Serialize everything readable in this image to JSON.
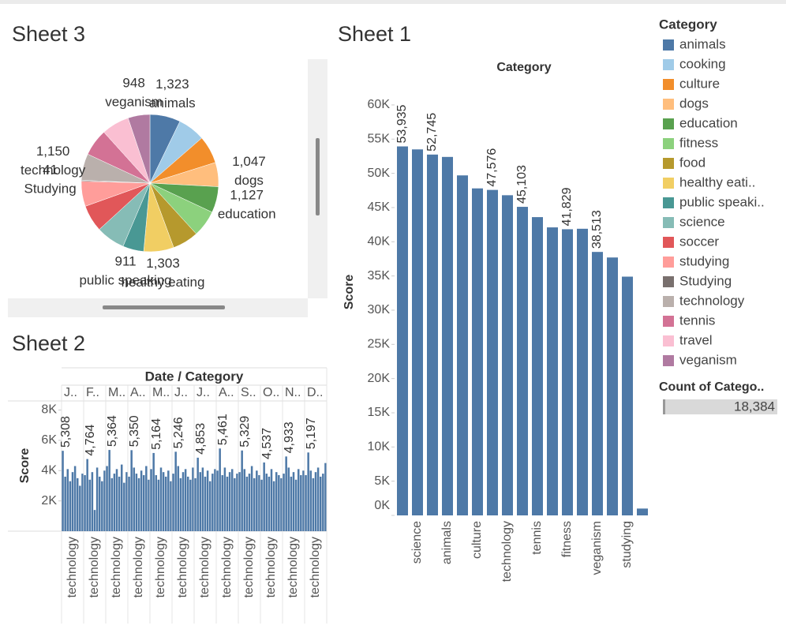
{
  "chart_data": [
    {
      "type": "pie",
      "title": "Sheet 3",
      "categories": [
        "animals",
        "cooking",
        "culture",
        "dogs",
        "education",
        "fitness",
        "food",
        "healthy eating",
        "public speaking",
        "science",
        "soccer",
        "studying",
        "Studying",
        "technology",
        "tennis",
        "travel",
        "veganism"
      ],
      "values": [
        1323,
        1180,
        1200,
        1047,
        1127,
        1150,
        1130,
        1303,
        911,
        1250,
        1160,
        1090,
        41,
        1150,
        1170,
        1204,
        948
      ],
      "value_labels": [
        "1,323",
        null,
        null,
        "1,047",
        "1,127",
        null,
        null,
        "1,303",
        "911",
        null,
        null,
        null,
        "41",
        "1,150",
        null,
        null,
        "948"
      ],
      "colors": [
        "#4e79a7",
        "#a0cbe8",
        "#f28e2b",
        "#ffbe7d",
        "#59a14f",
        "#8cd17d",
        "#b6992d",
        "#f1ce63",
        "#499894",
        "#86bcb6",
        "#e15759",
        "#ff9d9a",
        "#79706e",
        "#bab0ac",
        "#d37295",
        "#fabfd2",
        "#b07aa1"
      ]
    },
    {
      "type": "bar",
      "title": "Sheet 1",
      "header": "Category",
      "y_label": "Score",
      "color": "#4e79a7",
      "categories": [
        null,
        "science",
        null,
        "animals",
        null,
        "culture",
        null,
        "technology",
        null,
        "tennis",
        null,
        "fitness",
        null,
        "veganism",
        null,
        "studying",
        null
      ],
      "values": [
        53935,
        53500,
        52745,
        52400,
        49700,
        47800,
        47576,
        46800,
        45103,
        43600,
        42100,
        41829,
        41900,
        38513,
        37700,
        34900,
        1000
      ],
      "value_labels": [
        "53,935",
        null,
        "52,745",
        null,
        null,
        null,
        "47,576",
        null,
        "45,103",
        null,
        null,
        "41,829",
        null,
        "38,513",
        null,
        null,
        null
      ],
      "ylim": [
        0,
        63800
      ],
      "yticks": [
        {
          "value": 0,
          "label": "0K"
        },
        {
          "value": 5000,
          "label": "5K"
        },
        {
          "value": 10000,
          "label": "10K"
        },
        {
          "value": 15000,
          "label": "15K"
        },
        {
          "value": 20000,
          "label": "20K"
        },
        {
          "value": 25000,
          "label": "25K"
        },
        {
          "value": 30000,
          "label": "30K"
        },
        {
          "value": 35000,
          "label": "35K"
        },
        {
          "value": 40000,
          "label": "40K"
        },
        {
          "value": 45000,
          "label": "45K"
        },
        {
          "value": 50000,
          "label": "50K"
        },
        {
          "value": 55000,
          "label": "55K"
        },
        {
          "value": 60000,
          "label": "60K"
        }
      ]
    },
    {
      "type": "grouped_bar",
      "title": "Sheet 2",
      "header": "Date / Category",
      "y_label": "Score",
      "color": "#4e79a7",
      "ylim": [
        0,
        8600
      ],
      "yticks": [
        {
          "value": 2000,
          "label": "2K"
        },
        {
          "value": 4000,
          "label": "4K"
        },
        {
          "value": 6000,
          "label": "6K"
        },
        {
          "value": 8000,
          "label": "8K"
        }
      ],
      "groups": [
        {
          "label": "J..",
          "category": "technology",
          "values": [
            5308,
            3600,
            4100,
            3300,
            3900,
            4300,
            3500,
            3000,
            3800
          ],
          "value_labels": [
            "5,308",
            null,
            null,
            null,
            null,
            null,
            null,
            null,
            null
          ]
        },
        {
          "label": "F..",
          "category": "technology",
          "values": [
            3700,
            4764,
            3400,
            3900,
            1400,
            4200,
            3600,
            3300,
            4000
          ],
          "value_labels": [
            null,
            "4,764",
            null,
            null,
            null,
            null,
            null,
            null,
            null
          ]
        },
        {
          "label": "M..",
          "category": "technology",
          "values": [
            4300,
            5364,
            3500,
            3800,
            4100,
            3600,
            4400,
            3200,
            3900
          ],
          "value_labels": [
            null,
            "5,364",
            null,
            null,
            null,
            null,
            null,
            null,
            null
          ]
        },
        {
          "label": "A..",
          "category": "technology",
          "values": [
            3600,
            5350,
            4200,
            3800,
            3500,
            4000,
            3700,
            4300,
            3400
          ],
          "value_labels": [
            null,
            "5,350",
            null,
            null,
            null,
            null,
            null,
            null,
            null
          ]
        },
        {
          "label": "M..",
          "category": "technology",
          "values": [
            4100,
            5164,
            3700,
            3400,
            4200,
            3900,
            3600,
            4000,
            3300
          ],
          "value_labels": [
            null,
            "5,164",
            null,
            null,
            null,
            null,
            null,
            null,
            null
          ]
        },
        {
          "label": "J..",
          "category": "technology",
          "values": [
            3800,
            5246,
            4300,
            3500,
            3900,
            4100,
            3600,
            3400,
            4200
          ],
          "value_labels": [
            null,
            "5,246",
            null,
            null,
            null,
            null,
            null,
            null,
            null
          ]
        },
        {
          "label": "J..",
          "category": "technology",
          "values": [
            3500,
            4853,
            3900,
            4200,
            3600,
            4000,
            3300,
            3800,
            4100
          ],
          "value_labels": [
            null,
            "4,853",
            null,
            null,
            null,
            null,
            null,
            null,
            null
          ]
        },
        {
          "label": "A..",
          "category": "technology",
          "values": [
            4000,
            5461,
            3700,
            4200,
            3600,
            3900,
            4100,
            3500,
            3800
          ],
          "value_labels": [
            null,
            "5,461",
            null,
            null,
            null,
            null,
            null,
            null,
            null
          ]
        },
        {
          "label": "S..",
          "category": "technology",
          "values": [
            3900,
            5329,
            4100,
            3600,
            3800,
            4300,
            3500,
            4000,
            3700
          ],
          "value_labels": [
            null,
            "5,329",
            null,
            null,
            null,
            null,
            null,
            null,
            null
          ]
        },
        {
          "label": "O..",
          "category": "technology",
          "values": [
            3400,
            4537,
            3800,
            3600,
            4100,
            3300,
            3900,
            3700,
            3500
          ],
          "value_labels": [
            null,
            "4,537",
            null,
            null,
            null,
            null,
            null,
            null,
            null
          ]
        },
        {
          "label": "N..",
          "category": "technology",
          "values": [
            3800,
            4933,
            4200,
            3600,
            3900,
            3400,
            4100,
            3700,
            4000
          ],
          "value_labels": [
            null,
            "4,933",
            null,
            null,
            null,
            null,
            null,
            null,
            null
          ]
        },
        {
          "label": "D..",
          "category": "technology",
          "values": [
            3700,
            5197,
            4000,
            3500,
            3900,
            4200,
            3600,
            3800,
            4500
          ],
          "value_labels": [
            null,
            "5,197",
            null,
            null,
            null,
            null,
            null,
            null,
            null
          ]
        }
      ]
    }
  ],
  "legend": {
    "title": "Category",
    "labels": [
      "animals",
      "cooking",
      "culture",
      "dogs",
      "education",
      "fitness",
      "food",
      "healthy eati..",
      "public speaki..",
      "science",
      "soccer",
      "studying",
      "Studying",
      "technology",
      "tennis",
      "travel",
      "veganism"
    ]
  },
  "count_card": {
    "title": "Count of Catego..",
    "value": "18,384"
  }
}
